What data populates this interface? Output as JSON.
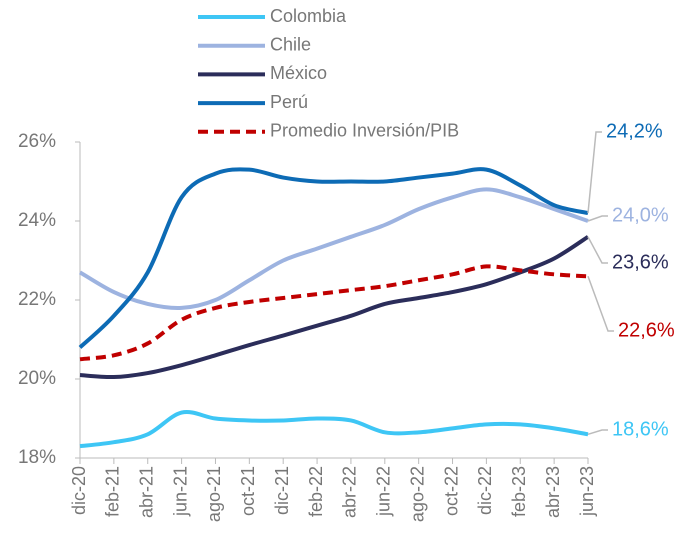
{
  "chart_data": {
    "type": "line",
    "categories": [
      "dic-20",
      "feb-21",
      "abr-21",
      "jun-21",
      "ago-21",
      "oct-21",
      "dic-21",
      "feb-22",
      "abr-22",
      "jun-22",
      "ago-22",
      "oct-22",
      "dic-22",
      "feb-23",
      "abr-23",
      "jun-23"
    ],
    "ylim": [
      18,
      26
    ],
    "yticks": [
      {
        "value": 18,
        "label": "18%"
      },
      {
        "value": 20,
        "label": "20%"
      },
      {
        "value": 22,
        "label": "22%"
      },
      {
        "value": 24,
        "label": "24%"
      },
      {
        "value": 26,
        "label": "26%"
      }
    ],
    "series": [
      {
        "name": "Colombia",
        "color": "#3ec6f5",
        "dashed": false,
        "values": [
          18.3,
          18.4,
          18.6,
          19.15,
          19.0,
          18.95,
          18.95,
          19.0,
          18.95,
          18.65,
          18.65,
          18.75,
          18.85,
          18.85,
          18.75,
          18.6
        ],
        "value_labels": [
          null,
          null,
          null,
          null,
          null,
          null,
          null,
          null,
          null,
          null,
          null,
          null,
          null,
          null,
          null,
          "18,6%"
        ]
      },
      {
        "name": "Chile",
        "color": "#9db3e0",
        "dashed": false,
        "values": [
          22.7,
          22.2,
          21.9,
          21.8,
          22.0,
          22.5,
          23.0,
          23.3,
          23.6,
          23.9,
          24.3,
          24.6,
          24.8,
          24.6,
          24.3,
          24.0
        ],
        "value_labels": [
          null,
          null,
          null,
          null,
          null,
          null,
          null,
          null,
          null,
          null,
          null,
          null,
          null,
          null,
          null,
          "24,0%"
        ]
      },
      {
        "name": "México",
        "color": "#2b2d5a",
        "dashed": false,
        "values": [
          20.1,
          20.05,
          20.15,
          20.35,
          20.6,
          20.86,
          21.1,
          21.35,
          21.6,
          21.9,
          22.05,
          22.2,
          22.4,
          22.7,
          23.05,
          23.6
        ],
        "value_labels": [
          null,
          null,
          null,
          null,
          null,
          null,
          null,
          null,
          null,
          null,
          null,
          null,
          null,
          null,
          null,
          "23,6%"
        ]
      },
      {
        "name": "Perú",
        "color": "#0d6bb5",
        "dashed": false,
        "values": [
          20.8,
          21.6,
          22.7,
          24.6,
          25.2,
          25.3,
          25.1,
          25.0,
          25.0,
          25.0,
          25.1,
          25.2,
          25.3,
          24.9,
          24.4,
          24.2
        ],
        "value_labels": [
          null,
          null,
          null,
          null,
          null,
          null,
          null,
          null,
          null,
          null,
          null,
          null,
          null,
          null,
          null,
          "24,2%"
        ]
      },
      {
        "name": "Promedio Inversión/PIB",
        "color": "#c00000",
        "dashed": true,
        "values": [
          20.5,
          20.6,
          20.9,
          21.5,
          21.8,
          21.95,
          22.05,
          22.15,
          22.25,
          22.35,
          22.5,
          22.65,
          22.85,
          22.75,
          22.65,
          22.6
        ],
        "value_labels": [
          null,
          null,
          null,
          null,
          null,
          null,
          null,
          null,
          null,
          null,
          null,
          null,
          null,
          null,
          null,
          "22,6%"
        ]
      }
    ]
  }
}
